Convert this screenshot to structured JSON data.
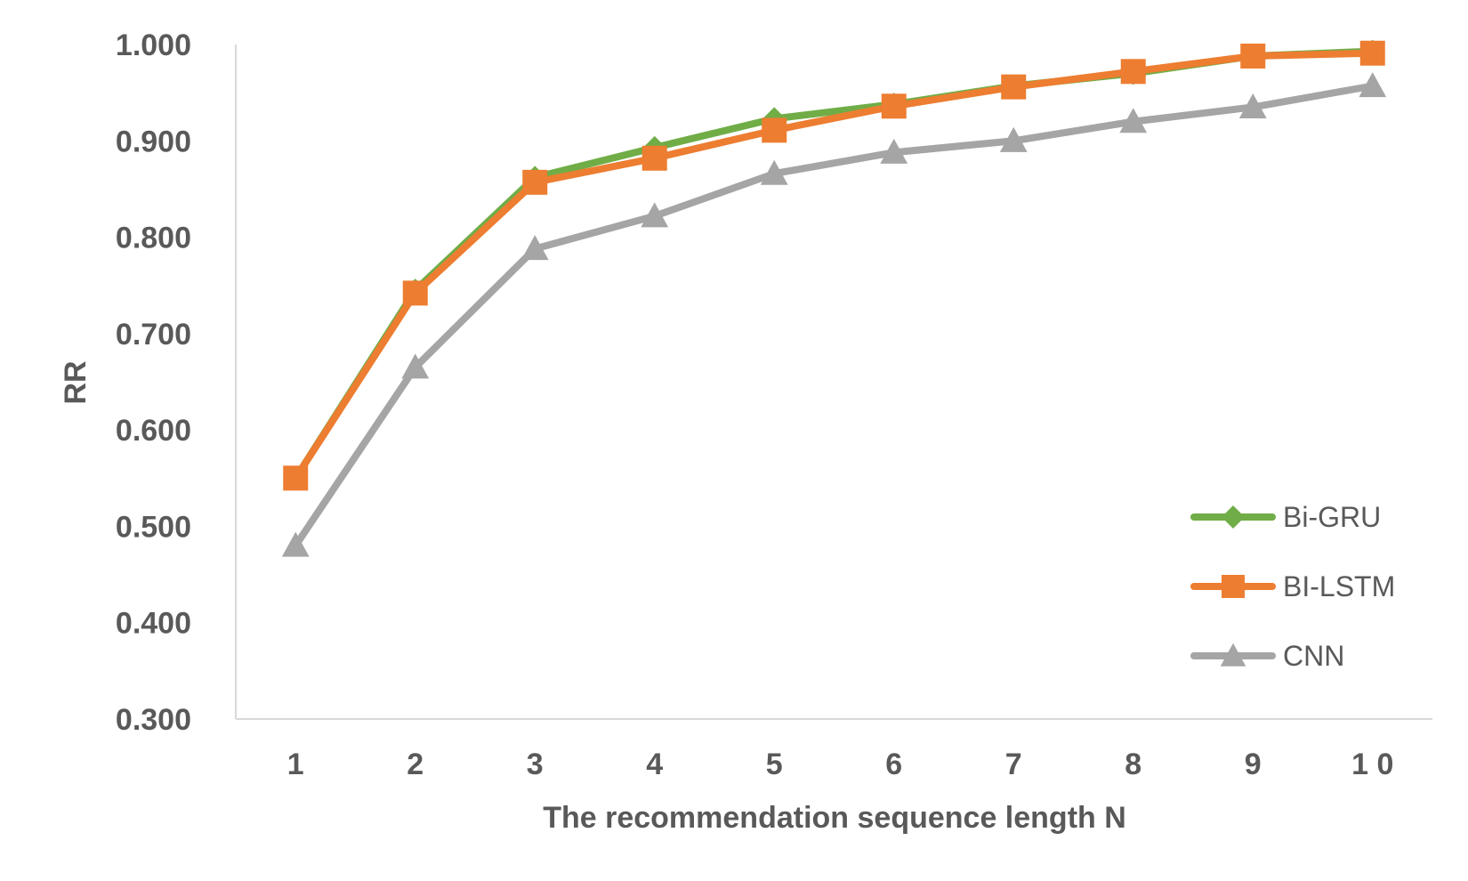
{
  "chart_data": {
    "type": "line",
    "title": "",
    "xlabel": "The recommendation sequence length N",
    "ylabel": "RR",
    "categories": [
      "1",
      "2",
      "3",
      "4",
      "5",
      "6",
      "7",
      "8",
      "9",
      "1 0"
    ],
    "ylim": [
      0.3,
      1.0
    ],
    "yticks": [
      "0.300",
      "0.400",
      "0.500",
      "0.600",
      "0.700",
      "0.800",
      "0.900",
      "1.000"
    ],
    "grid": false,
    "legend_position": "right",
    "series": [
      {
        "name": "Bi-GRU",
        "marker": "diamond",
        "color": "#70ad47",
        "values": [
          0.55,
          0.745,
          0.862,
          0.893,
          0.923,
          0.938,
          0.957,
          0.97,
          0.988,
          0.993
        ]
      },
      {
        "name": "BI-LSTM",
        "marker": "square",
        "color": "#ed7d31",
        "values": [
          0.55,
          0.742,
          0.857,
          0.882,
          0.911,
          0.936,
          0.956,
          0.972,
          0.988,
          0.991
        ]
      },
      {
        "name": "CNN",
        "marker": "triangle",
        "color": "#a5a5a5",
        "values": [
          0.48,
          0.665,
          0.788,
          0.822,
          0.866,
          0.888,
          0.9,
          0.92,
          0.935,
          0.957
        ]
      }
    ]
  }
}
